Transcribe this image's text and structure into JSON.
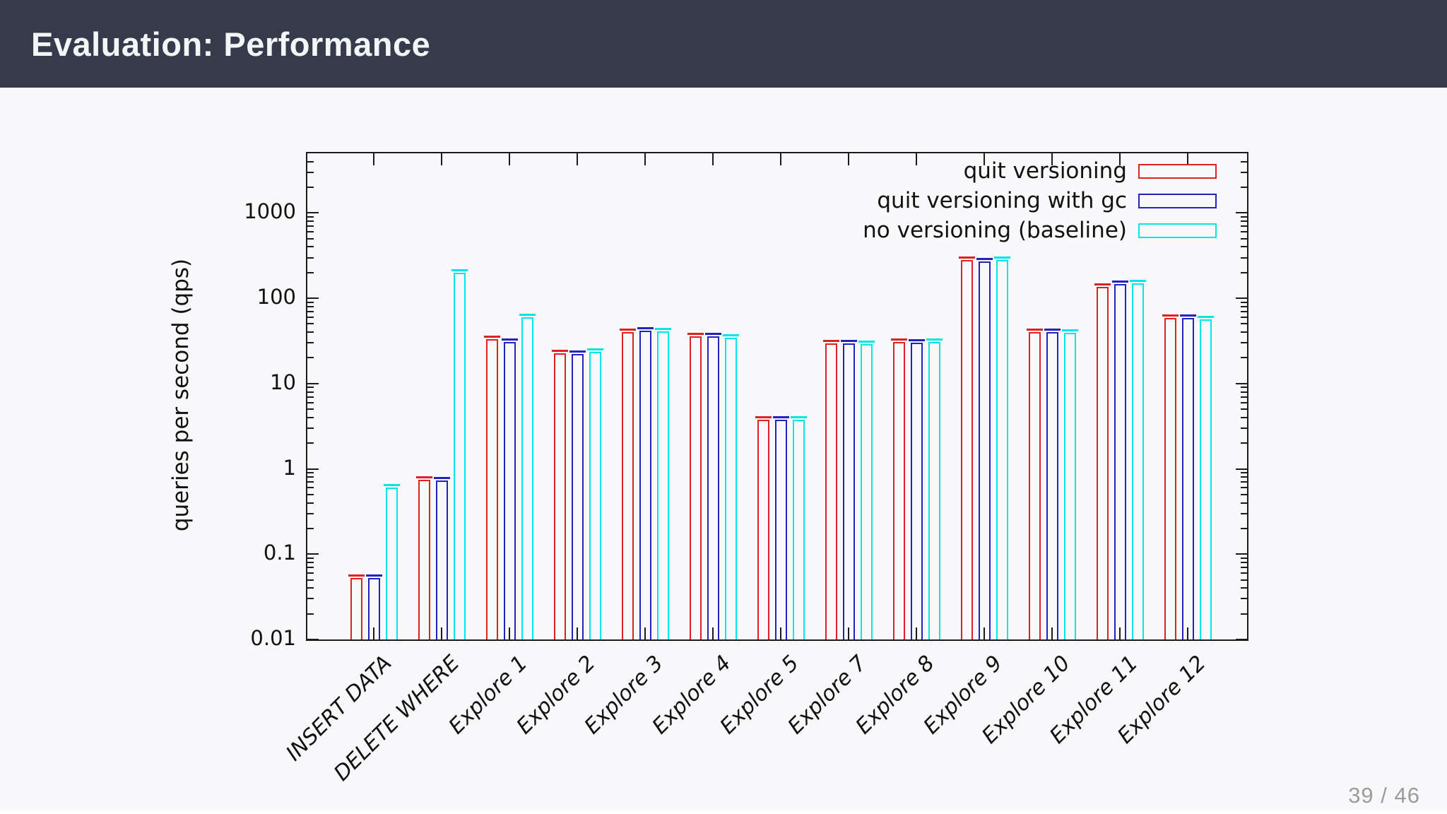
{
  "header": {
    "title": "Evaluation: Performance"
  },
  "footer": {
    "page_number": "39 / 46"
  },
  "colors": {
    "header_bg": "#353b4a",
    "slide_bg": "#f8f8fa",
    "axis": "#1c1c1c",
    "series_red": "#dd2222",
    "series_blue": "#2323bd",
    "series_cyan": "#00e6e6",
    "page_number": "#9b9b9b"
  },
  "chart_data": {
    "type": "bar",
    "title": "",
    "xlabel": "",
    "ylabel": "queries per second (qps)",
    "y_scale": "log",
    "ylim": [
      0.01,
      5000
    ],
    "ytick_labels": [
      "1000",
      "100",
      "10",
      "1",
      "0.1",
      "0.01"
    ],
    "grid": false,
    "legend_position": "top-right",
    "bar_style": "open-outline-with-error-caps",
    "categories": [
      "INSERT DATA",
      "DELETE WHERE",
      "Explore 1",
      "Explore 2",
      "Explore 3",
      "Explore 4",
      "Explore 5",
      "Explore 7",
      "Explore 8",
      "Explore 9",
      "Explore 10",
      "Explore 11",
      "Explore 12"
    ],
    "series": [
      {
        "name": "quit versioning",
        "color": "#dd2222",
        "values": [
          0.053,
          0.74,
          33,
          22.5,
          40,
          36,
          3.8,
          29.5,
          30.5,
          283,
          40,
          137,
          59
        ]
      },
      {
        "name": "quit versioning with gc",
        "color": "#2323bd",
        "values": [
          0.053,
          0.73,
          31,
          22.3,
          42,
          35.5,
          3.75,
          29.3,
          30.3,
          272,
          40,
          146,
          59
        ]
      },
      {
        "name": "no versioning (baseline)",
        "color": "#00e6e6",
        "values": [
          0.6,
          199,
          60,
          23.5,
          41,
          34.5,
          3.8,
          29.0,
          30.8,
          278,
          39.5,
          150,
          57
        ]
      }
    ]
  }
}
